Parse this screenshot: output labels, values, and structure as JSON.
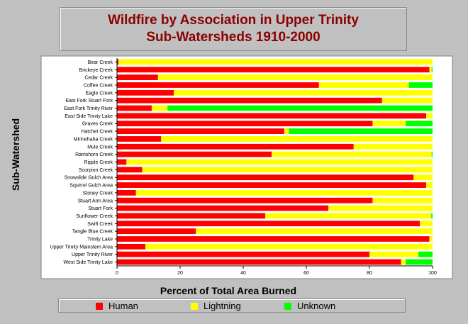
{
  "chart_data": {
    "type": "bar",
    "orientation": "horizontal",
    "stacked": true,
    "title_lines": [
      "Wildfire by Association in Upper Trinity",
      "Sub-Watersheds 1910-2000"
    ],
    "xlabel": "Percent of Total Area Burned",
    "ylabel": "Sub-Watershed",
    "xlim": [
      0,
      100
    ],
    "xticks": [
      0,
      20,
      40,
      60,
      80,
      100
    ],
    "grid": false,
    "legend_position": "bottom",
    "categories": [
      "Bear Creek",
      "Brickeye Creek",
      "Cedar Creek",
      "Coffee Creek",
      "Eagle Creek",
      "East Fork Stuart Fork",
      "East Fork Trinity River",
      "East Side Trinity Lake",
      "Graves Creek",
      "Hatchet Creek",
      "Minnehaha Creek",
      "Mule Creek",
      "Ramshorn Creek",
      "Ripple Creek",
      "Scorpion Creek",
      "Snowslide Gulch Area",
      "Squirrel Gulch Area",
      "Stoney Creek",
      "Stuart Arm Area",
      "Stuart Fork",
      "Sunflower Creek",
      "Swift Creek",
      "Tangle Blue Creek",
      "Trinity Lake",
      "Upper Trinity Mainstem Area",
      "Upper Trinity River",
      "West Side Trinity Lake"
    ],
    "series": [
      {
        "name": "Human",
        "color": "#ff0000",
        "values": [
          0.5,
          99,
          13,
          64,
          18,
          84,
          11,
          98,
          81,
          53,
          14,
          75,
          49,
          3,
          8,
          94,
          98,
          6,
          81,
          67,
          47,
          96,
          25,
          99,
          9,
          80,
          90
        ]
      },
      {
        "name": "Lightning",
        "color": "#ffff00",
        "values": [
          99.5,
          0.7,
          87,
          28.5,
          82,
          16,
          5,
          2,
          10.5,
          1.5,
          86,
          25,
          50.7,
          97,
          92,
          6,
          2,
          94,
          19,
          33,
          52.6,
          4,
          75,
          1,
          91,
          15.5,
          1.5
        ]
      },
      {
        "name": "Unknown",
        "color": "#00ff00",
        "values": [
          0,
          0.3,
          0,
          7.5,
          0,
          0,
          84,
          0,
          8.5,
          45.5,
          0,
          0,
          0.3,
          0,
          0,
          0,
          0,
          0,
          0,
          0,
          0.4,
          0,
          0,
          0,
          0,
          4.5,
          8.5
        ]
      }
    ]
  }
}
